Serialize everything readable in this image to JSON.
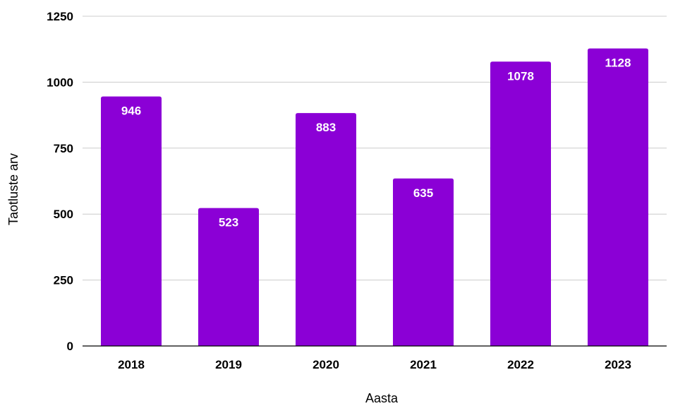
{
  "chart_data": {
    "type": "bar",
    "categories": [
      "2018",
      "2019",
      "2020",
      "2021",
      "2022",
      "2023"
    ],
    "values": [
      946,
      523,
      883,
      635,
      1078,
      1128
    ],
    "xlabel": "Aasta",
    "ylabel": "Taotluste arv",
    "ylim": [
      0,
      1250
    ],
    "yticks": [
      0,
      250,
      500,
      750,
      1000,
      1250
    ],
    "grid": true,
    "legend": "none",
    "colors": {
      "bar": "#8b00d6",
      "grid": "#cccccc",
      "axis": "#000000",
      "data_label": "#ffffff"
    }
  }
}
